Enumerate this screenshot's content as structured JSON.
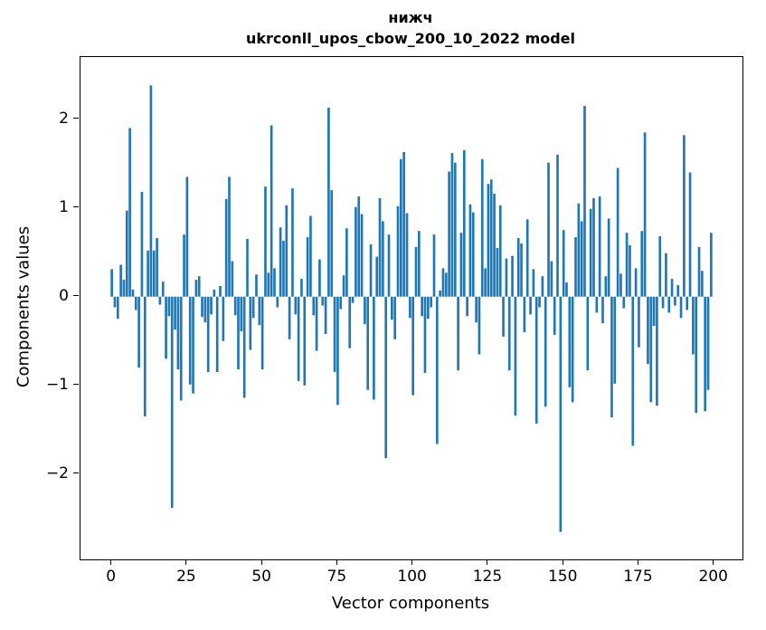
{
  "figure": {
    "background": "#ffffff"
  },
  "chart_data": {
    "type": "bar",
    "title_line1": "нижч",
    "title_line2": "ukrconll_upos_cbow_200_10_2022 model",
    "xlabel": "Vector components",
    "ylabel": "Components values",
    "bar_color": "#1f77b4",
    "axis_color": "#000000",
    "grid": false,
    "legend": null,
    "x_is_component_index": true,
    "n_components": 200,
    "xlim": [
      -10.4,
      209.4
    ],
    "ylim": [
      -2.96,
      2.7
    ],
    "xticks": [
      0,
      25,
      50,
      75,
      100,
      125,
      150,
      175,
      200
    ],
    "yticks": [
      -2,
      -1,
      0,
      1,
      2
    ],
    "values": [
      0.31,
      -0.12,
      -0.25,
      0.36,
      0.19,
      0.97,
      1.9,
      0.08,
      -0.15,
      -0.8,
      1.18,
      -1.35,
      0.52,
      2.38,
      0.52,
      0.66,
      -0.09,
      0.17,
      -0.7,
      -0.22,
      -2.38,
      -0.37,
      -0.82,
      -1.17,
      0.7,
      1.35,
      -0.99,
      -1.09,
      0.19,
      0.23,
      -0.23,
      -0.29,
      -0.85,
      -0.2,
      0.08,
      -0.85,
      0.12,
      -0.5,
      1.1,
      1.35,
      0.4,
      -0.21,
      -0.82,
      -0.39,
      -1.14,
      0.65,
      -0.6,
      -0.24,
      0.25,
      -0.32,
      -0.82,
      1.24,
      0.27,
      1.93,
      0.32,
      -0.12,
      0.78,
      0.63,
      1.03,
      -0.48,
      1.22,
      -0.2,
      -0.95,
      0.2,
      -1.0,
      0.67,
      0.91,
      -0.21,
      -0.61,
      0.42,
      -0.1,
      -0.42,
      2.13,
      1.2,
      -0.85,
      -1.22,
      -0.14,
      0.24,
      0.77,
      -0.58,
      -0.07,
      1.01,
      1.13,
      0.93,
      -0.31,
      -1.05,
      0.59,
      -1.16,
      0.45,
      1.11,
      0.85,
      -1.82,
      0.7,
      -0.26,
      -0.48,
      1.02,
      1.55,
      1.63,
      0.94,
      -0.24,
      -1.11,
      0.56,
      0.74,
      -0.22,
      -0.86,
      -0.25,
      -0.12,
      0.7,
      -1.66,
      0.07,
      0.32,
      0.27,
      1.41,
      1.62,
      1.51,
      -0.83,
      0.72,
      1.65,
      -0.22,
      1.04,
      0.95,
      -0.29,
      -0.65,
      1.55,
      0.32,
      1.27,
      1.32,
      1.16,
      0.55,
      1.03,
      -0.45,
      0.43,
      -0.83,
      0.46,
      -1.34,
      0.66,
      0.6,
      -0.4,
      0.87,
      -0.2,
      0.31,
      -1.43,
      -0.12,
      0.23,
      -1.24,
      1.51,
      0.4,
      -0.43,
      1.6,
      -2.65,
      0.75,
      0.16,
      -1.02,
      -1.19,
      0.67,
      1.05,
      0.85,
      2.15,
      -0.83,
      0.99,
      1.11,
      -0.18,
      1.13,
      -0.3,
      0.23,
      0.88,
      -1.36,
      -0.98,
      1.45,
      0.26,
      -0.13,
      0.72,
      0.58,
      -1.68,
      0.32,
      -0.57,
      0.74,
      1.85,
      -0.76,
      -1.19,
      -0.33,
      -1.23,
      0.68,
      -0.13,
      0.49,
      -0.18,
      0.2,
      -0.1,
      0.13,
      -0.24,
      1.82,
      -0.15,
      1.4,
      -0.65,
      -1.31,
      0.56,
      0.29,
      -1.29,
      -1.05,
      0.72
    ]
  }
}
